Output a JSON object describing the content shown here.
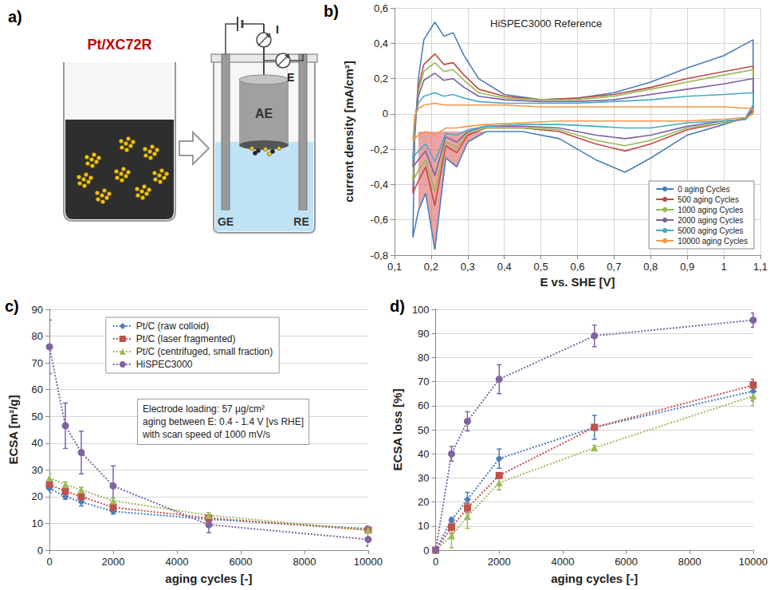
{
  "diagram": {
    "panel": "a)",
    "sample_label": "Pt/XC72R",
    "cell": {
      "working_electrode": "AE",
      "counter_electrode": "GE",
      "reference_electrode": "RE",
      "current_meter": "I",
      "potential_meter": "E"
    }
  },
  "chart_data": [
    {
      "panel": "b)",
      "type": "line",
      "title": "HiSPEC3000 Reference",
      "xlabel": "E vs. SHE [V]",
      "ylabel": "current density [mA/cm²]",
      "xlim": [
        0.1,
        1.1
      ],
      "xticks": [
        {
          "value": 0.1,
          "label": "0,1"
        },
        {
          "value": 0.2,
          "label": "0,2"
        },
        {
          "value": 0.3,
          "label": "0,3"
        },
        {
          "value": 0.4,
          "label": "0,4"
        },
        {
          "value": 0.5,
          "label": "0,5"
        },
        {
          "value": 0.6,
          "label": "0,6"
        },
        {
          "value": 0.7,
          "label": "0,7"
        },
        {
          "value": 0.8,
          "label": "0,8"
        },
        {
          "value": 0.9,
          "label": "0,9"
        },
        {
          "value": 1.0,
          "label": "1"
        },
        {
          "value": 1.1,
          "label": "1,1"
        }
      ],
      "ylim": [
        -0.8,
        0.6
      ],
      "yticks": [
        {
          "value": -0.8,
          "label": "-0,8"
        },
        {
          "value": -0.6,
          "label": "-0,6"
        },
        {
          "value": -0.4,
          "label": "-0,4"
        },
        {
          "value": -0.2,
          "label": "-0,2"
        },
        0,
        {
          "value": 0.2,
          "label": "0,2"
        },
        {
          "value": 0.4,
          "label": "0,4"
        },
        {
          "value": 0.6,
          "label": "0,6"
        }
      ],
      "grid": true,
      "legend": "lower right",
      "x": [
        0.15,
        0.155,
        0.165,
        0.18,
        0.21,
        0.235,
        0.26,
        0.29,
        0.33,
        0.4,
        0.5,
        0.6,
        0.7,
        0.8,
        0.9,
        1.0,
        1.08,
        1.08,
        1.06,
        1.0,
        0.9,
        0.8,
        0.73,
        0.65,
        0.55,
        0.45,
        0.35,
        0.3,
        0.27,
        0.24,
        0.21,
        0.185,
        0.165,
        0.15
      ],
      "series": [
        {
          "name": "0 aging Cycles",
          "color": "#4a7ebb",
          "values": [
            -0.7,
            -0.15,
            0.2,
            0.42,
            0.52,
            0.44,
            0.46,
            0.33,
            0.2,
            0.11,
            0.08,
            0.09,
            0.12,
            0.18,
            0.26,
            0.33,
            0.42,
            0.05,
            -0.02,
            -0.06,
            -0.12,
            -0.25,
            -0.33,
            -0.26,
            -0.14,
            -0.1,
            -0.1,
            -0.16,
            -0.3,
            -0.25,
            -0.77,
            -0.45,
            -0.55,
            -0.7
          ]
        },
        {
          "name": "500 aging Cycles",
          "color": "#be4b48",
          "values": [
            -0.45,
            -0.1,
            0.15,
            0.28,
            0.34,
            0.28,
            0.29,
            0.22,
            0.14,
            0.1,
            0.08,
            0.09,
            0.11,
            0.15,
            0.2,
            0.24,
            0.27,
            0.03,
            -0.03,
            -0.05,
            -0.09,
            -0.17,
            -0.21,
            -0.17,
            -0.1,
            -0.08,
            -0.08,
            -0.12,
            -0.22,
            -0.18,
            -0.52,
            -0.3,
            -0.38,
            -0.45
          ]
        },
        {
          "name": "1000 aging Cycles",
          "color": "#98b954",
          "values": [
            -0.38,
            -0.08,
            0.13,
            0.24,
            0.29,
            0.24,
            0.25,
            0.19,
            0.12,
            0.09,
            0.08,
            0.08,
            0.1,
            0.14,
            0.18,
            0.22,
            0.25,
            0.02,
            -0.03,
            -0.05,
            -0.08,
            -0.15,
            -0.18,
            -0.15,
            -0.09,
            -0.08,
            -0.08,
            -0.11,
            -0.19,
            -0.16,
            -0.44,
            -0.26,
            -0.32,
            -0.38
          ]
        },
        {
          "name": "2000 aging Cycles",
          "color": "#7d60a0",
          "values": [
            -0.3,
            -0.06,
            0.1,
            0.19,
            0.23,
            0.19,
            0.2,
            0.15,
            0.1,
            0.08,
            0.07,
            0.07,
            0.08,
            0.11,
            0.14,
            0.17,
            0.2,
            0.02,
            -0.03,
            -0.04,
            -0.07,
            -0.12,
            -0.14,
            -0.12,
            -0.08,
            -0.07,
            -0.07,
            -0.1,
            -0.16,
            -0.13,
            -0.35,
            -0.21,
            -0.26,
            -0.3
          ]
        },
        {
          "name": "5000 aging Cycles",
          "color": "#46aac5",
          "values": [
            -0.25,
            -0.04,
            0.06,
            0.1,
            0.12,
            0.1,
            0.11,
            0.09,
            0.07,
            0.06,
            0.06,
            0.06,
            0.07,
            0.08,
            0.1,
            0.11,
            0.12,
            0.01,
            -0.03,
            -0.04,
            -0.05,
            -0.08,
            -0.08,
            -0.07,
            -0.06,
            -0.06,
            -0.07,
            -0.09,
            -0.12,
            -0.11,
            -0.27,
            -0.17,
            -0.21,
            -0.25
          ]
        },
        {
          "name": "10000 aging Cycles",
          "color": "#f79646",
          "values": [
            -0.15,
            -0.01,
            0.03,
            0.05,
            0.06,
            0.05,
            0.05,
            0.05,
            0.05,
            0.05,
            0.04,
            0.04,
            0.04,
            0.04,
            0.04,
            0.04,
            0.03,
            0.0,
            -0.02,
            -0.03,
            -0.04,
            -0.04,
            -0.04,
            -0.04,
            -0.04,
            -0.05,
            -0.06,
            -0.07,
            -0.08,
            -0.08,
            -0.12,
            -0.1,
            -0.12,
            -0.15
          ]
        }
      ],
      "shaded_region": {
        "color": "#e06666",
        "points": [
          [
            0.165,
            -0.1
          ],
          [
            0.35,
            -0.1
          ],
          [
            0.3,
            -0.16
          ],
          [
            0.27,
            -0.3
          ],
          [
            0.24,
            -0.25
          ],
          [
            0.21,
            -0.77
          ],
          [
            0.185,
            -0.45
          ],
          [
            0.165,
            -0.55
          ]
        ]
      }
    },
    {
      "panel": "c)",
      "type": "line",
      "xlabel": "aging cycles [-]",
      "ylabel": "ECSA [m²/g]",
      "xlim": [
        0,
        10000
      ],
      "xticks": [
        0,
        2000,
        4000,
        6000,
        8000,
        10000
      ],
      "ylim": [
        0,
        90
      ],
      "yticks": [
        0,
        10,
        20,
        30,
        40,
        50,
        60,
        70,
        80,
        90
      ],
      "grid": "y",
      "legend": "upper center",
      "annotation": [
        "Electrode loading: 57 µg/cm²",
        "aging between E: 0.4 - 1.4 V [vs RHE]",
        "with scan speed of 1000 mV/s"
      ],
      "x": [
        0,
        500,
        1000,
        2000,
        5000,
        10000
      ],
      "series": [
        {
          "name": "Pt/C (raw colloid)",
          "color": "#4a7ebb",
          "marker": "diamond",
          "line_style": "dotted",
          "values": [
            23,
            20,
            18,
            14.5,
            11.5,
            8
          ],
          "errors": [
            1.5,
            1,
            1.5,
            1,
            1,
            1
          ]
        },
        {
          "name": "Pt/C (laser fragmented)",
          "color": "#c0504d",
          "marker": "square",
          "line_style": "dotted",
          "values": [
            24.5,
            22,
            20,
            16,
            12,
            7.5
          ],
          "errors": [
            1,
            1,
            1,
            1,
            1,
            1
          ]
        },
        {
          "name": "Pt/C (centrifuged, small fraction)",
          "color": "#9bbb59",
          "marker": "triangle",
          "line_style": "dotted",
          "values": [
            27,
            24.5,
            22.5,
            18.5,
            13,
            7.5
          ],
          "errors": [
            1.5,
            1,
            1,
            1,
            1,
            1
          ]
        },
        {
          "name": "HiSPEC3000",
          "color": "#8064a2",
          "marker": "circle",
          "line_style": "dotted",
          "values": [
            76,
            46.5,
            36.5,
            24,
            9.5,
            4
          ],
          "errors": [
            10,
            8.5,
            8,
            7.5,
            3,
            2.5
          ]
        }
      ]
    },
    {
      "panel": "d)",
      "type": "line",
      "xlabel": "aging cycles [-]",
      "ylabel": "ECSA loss [%]",
      "xlim": [
        0,
        10000
      ],
      "xticks": [
        0,
        2000,
        4000,
        6000,
        8000,
        10000
      ],
      "ylim": [
        0,
        100
      ],
      "yticks": [
        0,
        10,
        20,
        30,
        40,
        50,
        60,
        70,
        80,
        90,
        100
      ],
      "grid": "y",
      "x": [
        0,
        500,
        1000,
        2000,
        5000,
        10000
      ],
      "series": [
        {
          "color": "#4a7ebb",
          "marker": "diamond",
          "line_style": "dotted",
          "values": [
            0,
            12.5,
            21,
            38,
            51,
            66
          ],
          "errors": [
            0,
            1,
            3,
            4,
            5,
            4
          ]
        },
        {
          "color": "#c0504d",
          "marker": "square",
          "line_style": "dotted",
          "values": [
            0,
            9.5,
            17.5,
            31,
            51,
            68.5
          ],
          "errors": [
            0,
            2.5,
            2,
            1,
            1,
            2.5
          ]
        },
        {
          "color": "#9bbb59",
          "marker": "triangle",
          "line_style": "dotted",
          "values": [
            0,
            6,
            14,
            28,
            42.5,
            64
          ],
          "errors": [
            0,
            5,
            5,
            3,
            1,
            4
          ]
        },
        {
          "color": "#8064a2",
          "marker": "circle",
          "line_style": "dotted",
          "values": [
            0,
            40,
            53.5,
            71,
            89,
            95.5
          ],
          "errors": [
            0,
            3,
            4,
            6,
            4.5,
            3
          ]
        }
      ]
    }
  ]
}
